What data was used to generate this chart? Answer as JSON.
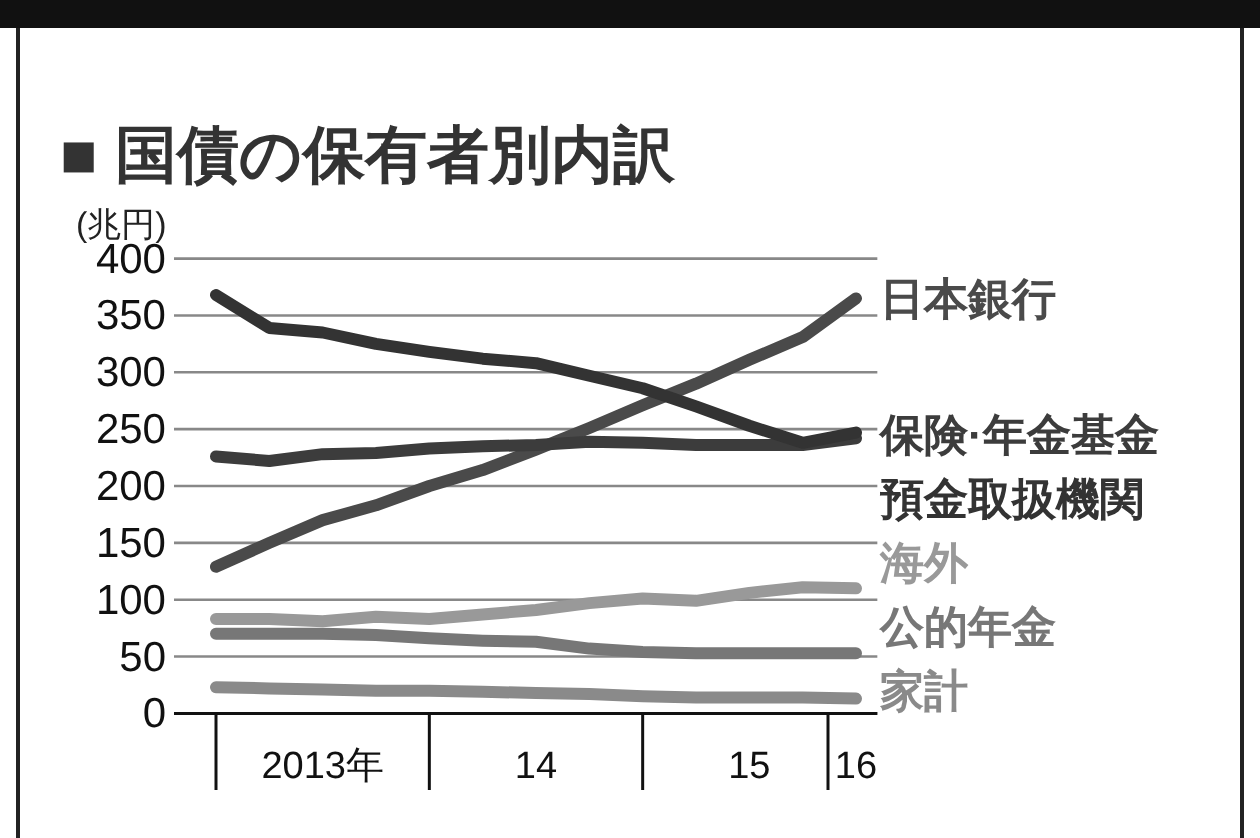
{
  "chart_data": {
    "type": "line",
    "title": "■ 国債の保有者別内訳",
    "ylabel": "(兆円)",
    "categories": [
      null,
      null,
      "2013年",
      null,
      null,
      null,
      "14",
      null,
      null,
      null,
      "15",
      null,
      "16"
    ],
    "ylim": [
      0,
      400
    ],
    "yticks": [
      0,
      50,
      100,
      150,
      200,
      250,
      300,
      350,
      400
    ],
    "grid": "y",
    "marker": "none",
    "line_style": "solid",
    "series": [
      {
        "name": "日本銀行",
        "color": "#4a4a4a",
        "values": [
          129,
          150,
          170,
          183,
          200,
          214,
          232,
          251,
          271,
          290,
          311,
          331,
          365
        ]
      },
      {
        "name": "保険·年金基金",
        "color": "#3c3c3c",
        "values": [
          226,
          222,
          228,
          229,
          233,
          235,
          236,
          239,
          238,
          236,
          236,
          236,
          242
        ]
      },
      {
        "name": "預金取扱機関",
        "color": "#333333",
        "values": [
          368,
          339,
          335,
          325,
          318,
          312,
          308,
          297,
          286,
          270,
          253,
          238,
          247
        ]
      },
      {
        "name": "海外",
        "color": "#999999",
        "values": [
          83,
          83,
          81,
          85,
          83,
          87,
          91,
          97,
          101,
          99,
          106,
          111,
          110
        ]
      },
      {
        "name": "公的年金",
        "color": "#777777",
        "values": [
          70,
          70,
          70,
          69,
          66,
          64,
          63,
          57,
          54,
          53,
          53,
          53,
          53
        ]
      },
      {
        "name": "家計",
        "color": "#8a8a8a",
        "values": [
          23,
          22,
          21,
          20,
          20,
          19,
          18,
          17,
          15,
          14,
          14,
          14,
          13
        ]
      }
    ]
  }
}
